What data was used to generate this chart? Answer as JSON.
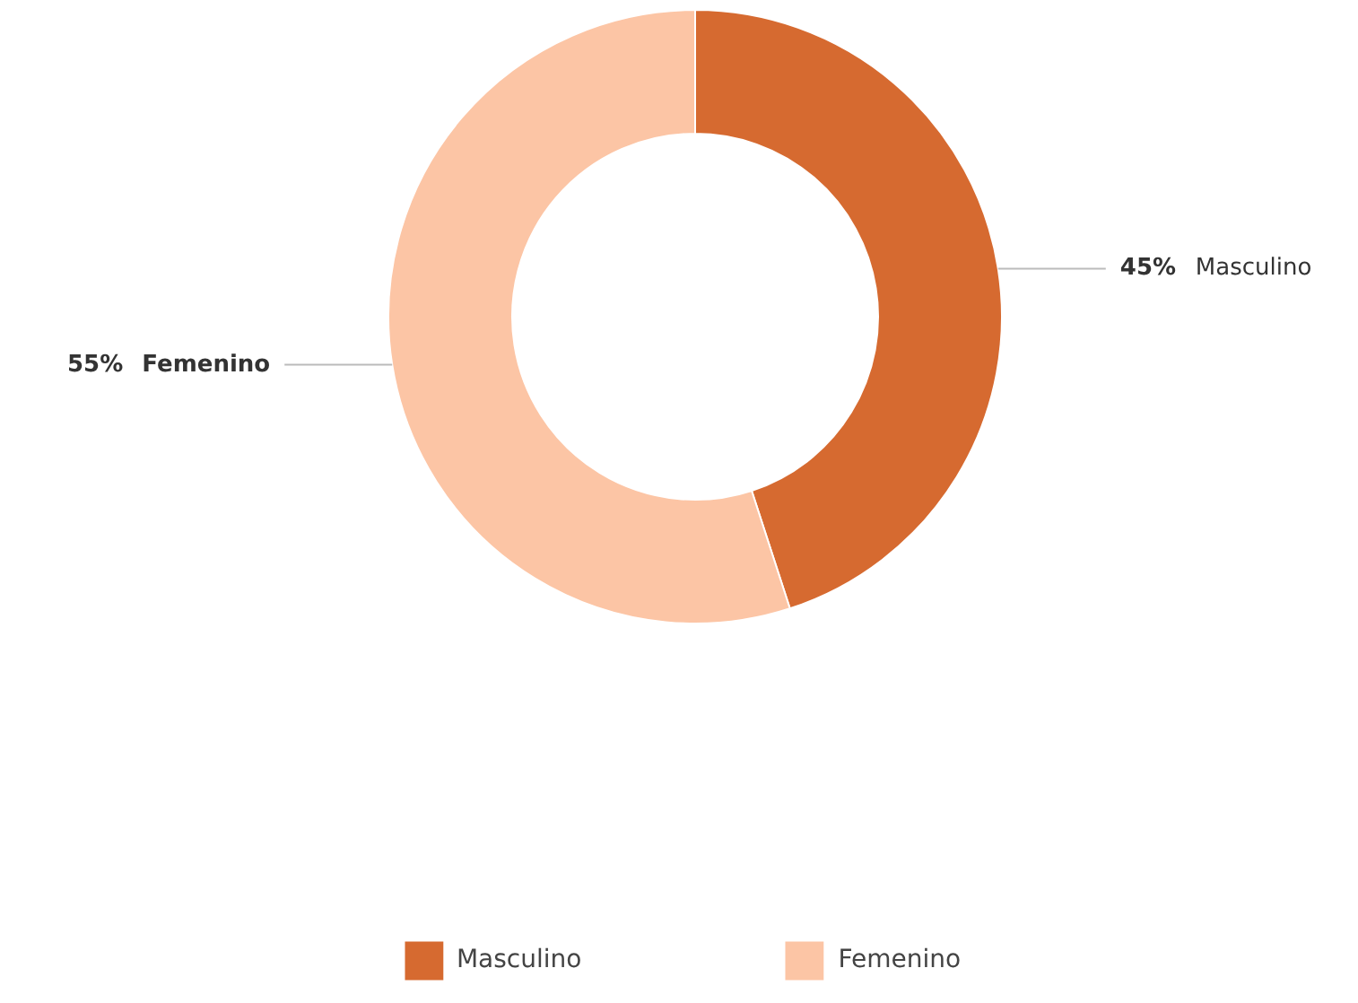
{
  "chart_data": {
    "type": "donut",
    "categories": [
      "Masculino",
      "Femenino"
    ],
    "values": [
      45,
      55
    ],
    "colors": [
      "#d66a30",
      "#fcc5a5"
    ],
    "value_labels": [
      "45%",
      "55%"
    ],
    "legend": "bottom"
  }
}
